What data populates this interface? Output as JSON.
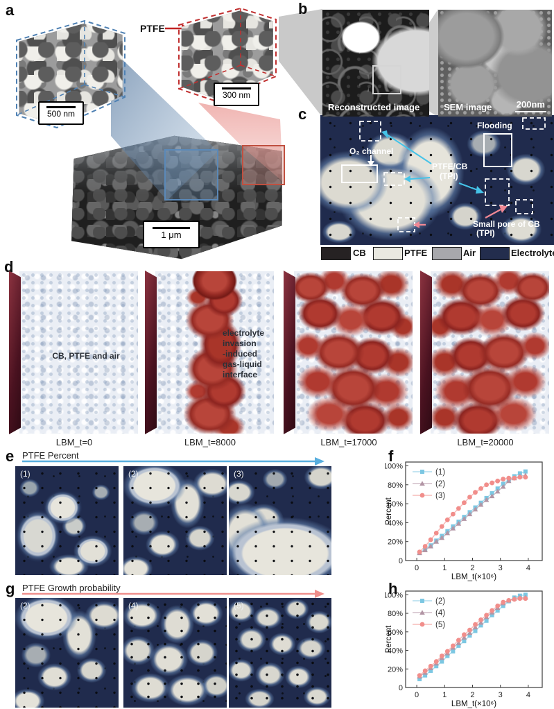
{
  "panels": {
    "a": {
      "label": "a",
      "ptfe": "PTFE",
      "scale_500": "500 nm",
      "scale_300": "300 nm",
      "scale_1um": "1 μm"
    },
    "b": {
      "label": "b",
      "recon_caption": "Reconstructed image",
      "sem_caption": "SEM image",
      "scale": "200nm"
    },
    "c": {
      "label": "c",
      "flooding": "Flooding",
      "o2_channel": "O₂ channel",
      "ptfe_cb": "PTFE/CB",
      "tpi_a": "(TPI)",
      "small_pore": "Small pore of CB",
      "tpi_b": "(TPI)",
      "legend": [
        {
          "label": "CB",
          "color": "#262223"
        },
        {
          "label": "PTFE",
          "color": "#eae9e1"
        },
        {
          "label": "Air",
          "color": "#a8a8ac"
        },
        {
          "label": "Electrolyte",
          "color": "#232d4d"
        }
      ]
    },
    "d": {
      "label": "d",
      "frames": [
        {
          "caption": "LBM_t=0",
          "note": "CB, PTFE and air"
        },
        {
          "caption": "LBM_t=8000",
          "note": "electrolyte\ninvasion\n-induced\ngas-liquid\ninterface"
        },
        {
          "caption": "LBM_t=17000",
          "note": ""
        },
        {
          "caption": "LBM_t=20000",
          "note": ""
        }
      ]
    },
    "e": {
      "label": "e",
      "title": "PTFE Percent",
      "tags": [
        "(1)",
        "(2)",
        "(3)"
      ]
    },
    "f": {
      "label": "f"
    },
    "g": {
      "label": "g",
      "title": "PTFE Growth probability",
      "tags": [
        "(2)",
        "(4)",
        "(5)"
      ]
    },
    "h": {
      "label": "h"
    }
  },
  "chart_data": [
    {
      "type": "line",
      "panel": "f",
      "title": "",
      "xlabel": "LBM_t(×10⁶)",
      "ylabel": "Percent",
      "xlim": [
        -0.4,
        4.5
      ],
      "ylim": [
        0,
        104
      ],
      "xticks": [
        0,
        1,
        2,
        3,
        4
      ],
      "yticks": [
        0,
        20,
        40,
        60,
        80,
        100
      ],
      "ytick_labels": [
        "0",
        "20%",
        "40%",
        "60%",
        "80%",
        "100%"
      ],
      "legend_position": "top-left",
      "grid": false,
      "x": [
        0.1,
        0.3,
        0.5,
        0.7,
        0.9,
        1.1,
        1.3,
        1.5,
        1.7,
        1.9,
        2.1,
        2.3,
        2.5,
        2.7,
        2.9,
        3.1,
        3.3,
        3.5,
        3.7,
        3.9
      ],
      "series": [
        {
          "name": "(1)",
          "marker": "square",
          "color": "#7cc7e2",
          "values": [
            8,
            12,
            16,
            21,
            26,
            31,
            36,
            41,
            46,
            51,
            56,
            61,
            66,
            71,
            76,
            81,
            85,
            89,
            92,
            94
          ]
        },
        {
          "name": "(2)",
          "marker": "triangle",
          "color": "#b295a4",
          "values": [
            8,
            11,
            15,
            20,
            24,
            29,
            34,
            39,
            44,
            49,
            54,
            59,
            64,
            68,
            73,
            78,
            84,
            87,
            89,
            90
          ]
        },
        {
          "name": "(3)",
          "marker": "circle",
          "color": "#f18e8b",
          "values": [
            9,
            15,
            22,
            29,
            36,
            43,
            49,
            55,
            61,
            67,
            72,
            76,
            80,
            82,
            84,
            86,
            87,
            87,
            88,
            88
          ]
        }
      ]
    },
    {
      "type": "line",
      "panel": "h",
      "title": "",
      "xlabel": "LBM_t(×10⁶)",
      "ylabel": "Percent",
      "xlim": [
        -0.4,
        4.5
      ],
      "ylim": [
        0,
        104
      ],
      "xticks": [
        0,
        1,
        2,
        3,
        4
      ],
      "yticks": [
        0,
        20,
        40,
        60,
        80,
        100
      ],
      "ytick_labels": [
        "0",
        "20%",
        "40%",
        "60%",
        "80%",
        "100%"
      ],
      "legend_position": "top-left",
      "grid": false,
      "x": [
        0.1,
        0.3,
        0.5,
        0.7,
        0.9,
        1.1,
        1.3,
        1.5,
        1.7,
        1.9,
        2.1,
        2.3,
        2.5,
        2.7,
        2.9,
        3.1,
        3.3,
        3.5,
        3.7,
        3.9
      ],
      "series": [
        {
          "name": "(2)",
          "marker": "square",
          "color": "#7cc7e2",
          "values": [
            9,
            13,
            18,
            23,
            28,
            34,
            39,
            45,
            50,
            56,
            61,
            67,
            72,
            78,
            83,
            88,
            93,
            97,
            99,
            100
          ]
        },
        {
          "name": "(4)",
          "marker": "triangle",
          "color": "#b295a4",
          "values": [
            12,
            16,
            21,
            26,
            32,
            37,
            43,
            48,
            54,
            59,
            65,
            70,
            76,
            81,
            86,
            91,
            94,
            96,
            97,
            97
          ]
        },
        {
          "name": "(5)",
          "marker": "circle",
          "color": "#f18e8b",
          "values": [
            13,
            18,
            23,
            28,
            34,
            39,
            45,
            51,
            57,
            62,
            68,
            73,
            78,
            83,
            88,
            92,
            94,
            95,
            96,
            96
          ]
        }
      ]
    }
  ]
}
